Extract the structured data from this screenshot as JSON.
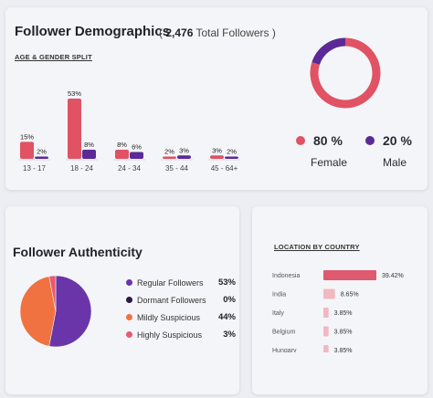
{
  "header": {
    "title": "Follower Demographics",
    "total_count": "2,476",
    "total_label": "Total Followers"
  },
  "age_gender": {
    "label": "AGE & GENDER SPLIT",
    "female_label": "Female",
    "male_label": "Male",
    "female_pct": "80 %",
    "male_pct": "20 %"
  },
  "authenticity": {
    "title": "Follower Authenticity",
    "items": [
      {
        "label": "Regular Followers",
        "value": "53%"
      },
      {
        "label": "Dormant Followers",
        "value": "0%"
      },
      {
        "label": "Mildly Suspicious",
        "value": "44%"
      },
      {
        "label": "Highly Suspicious",
        "value": "3%"
      }
    ]
  },
  "location": {
    "label": "LOCATION BY COUNTRY"
  },
  "colors": {
    "female": "#e05264",
    "male": "#5b2a96",
    "regular": "#6a35a8",
    "dormant": "#2a1845",
    "mild": "#ef7240",
    "high": "#e85a70",
    "country_bar_top": "#de5a6e",
    "country_bar_rest": "#f2b8c2"
  },
  "chart_data": [
    {
      "type": "bar",
      "title": "AGE & GENDER SPLIT",
      "categories": [
        "13 - 17",
        "18 - 24",
        "24 - 34",
        "35 - 44",
        "45 - 64+"
      ],
      "series": [
        {
          "name": "Female",
          "values": [
            15,
            53,
            8,
            2,
            3
          ],
          "labels": [
            "15%",
            "53%",
            "8%",
            "2%",
            "3%"
          ]
        },
        {
          "name": "Male",
          "values": [
            2,
            8,
            6,
            3,
            2
          ],
          "labels": [
            "2%",
            "8%",
            "6%",
            "3%",
            "2%"
          ]
        }
      ]
    },
    {
      "type": "pie",
      "values": [
        80,
        20
      ],
      "categories": [
        "Female",
        "Male"
      ]
    },
    {
      "type": "pie",
      "title": "Follower Authenticity",
      "categories": [
        "Regular Followers",
        "Dormant Followers",
        "Mildly Suspicious",
        "Highly Suspicious"
      ],
      "values": [
        53,
        0,
        44,
        3
      ]
    },
    {
      "type": "bar",
      "title": "LOCATION BY COUNTRY",
      "orientation": "horizontal",
      "categories": [
        "Indonesia",
        "India",
        "Italy",
        "Belgium",
        "Hungary"
      ],
      "values": [
        39.42,
        8.65,
        3.85,
        3.85,
        3.85
      ],
      "labels": [
        "39.42%",
        "8.65%",
        "3.85%",
        "3.85%",
        "3.85%"
      ]
    }
  ]
}
